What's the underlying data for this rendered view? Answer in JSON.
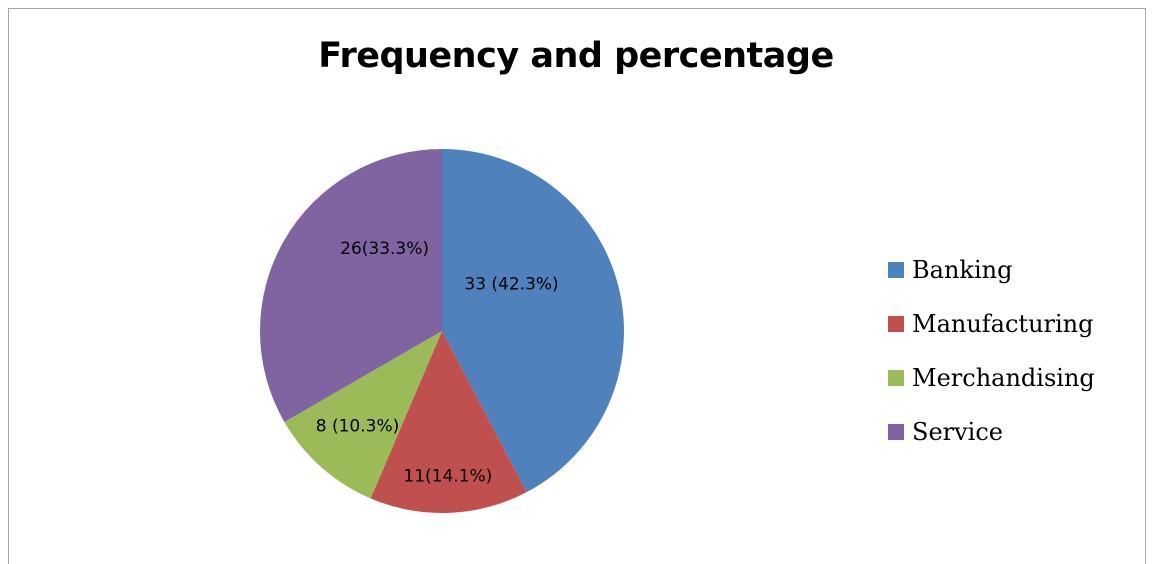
{
  "chart_data": {
    "type": "pie",
    "title": "Frequency and percentage",
    "categories": [
      "Banking",
      "Manufacturing",
      "Merchandising",
      "Service"
    ],
    "values": [
      33,
      11,
      8,
      26
    ],
    "percentages": [
      42.3,
      14.1,
      10.3,
      33.3
    ],
    "data_labels": [
      "33 (42.3%)",
      "11(14.1%)",
      "8 (10.3%)",
      "26(33.3%)"
    ],
    "colors": [
      "#4f81bd",
      "#c0504d",
      "#9bbb59",
      "#8064a2"
    ],
    "start_angle_deg": 0,
    "direction": "clockwise",
    "legend_position": "right"
  }
}
